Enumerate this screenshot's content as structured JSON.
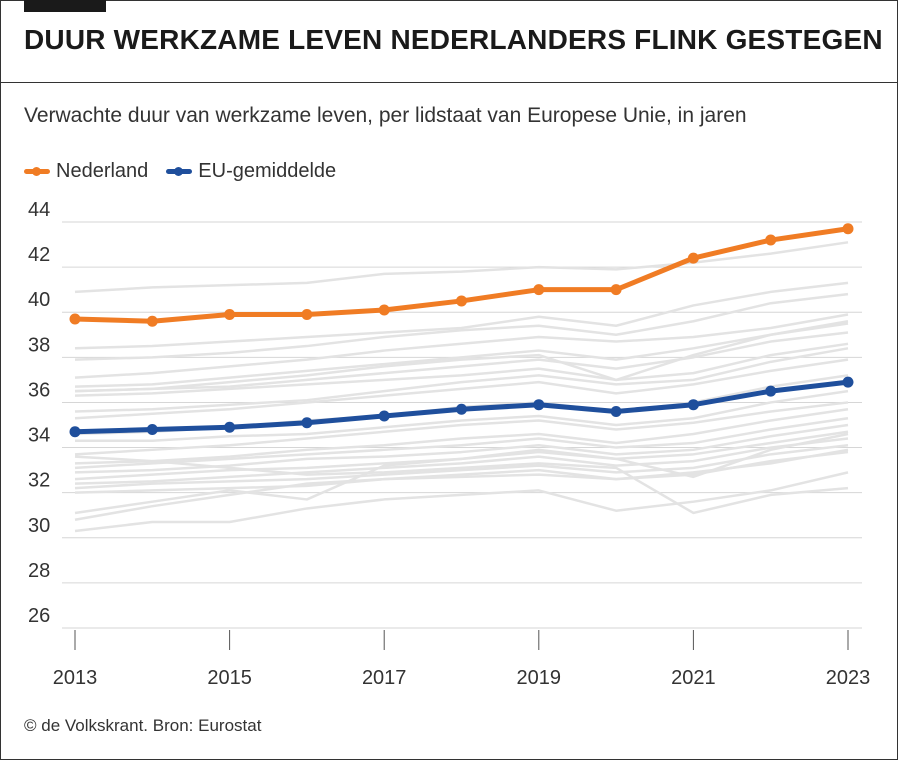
{
  "header": {
    "headline": "DUUR WERKZAME LEVEN NEDERLANDERS FLINK GESTEGEN",
    "subtitle": "Verwachte duur van werkzame leven, per lidstaat van Europese Unie, in jaren"
  },
  "footer": {
    "source": "© de Volkskrant. Bron: Eurostat"
  },
  "colors": {
    "nederland": "#f07c24",
    "eu": "#1f4f9c",
    "background_lines": "#e3e3e3",
    "grid": "#d6d6d6"
  },
  "chart_data": {
    "type": "line",
    "title": "DUUR WERKZAME LEVEN NEDERLANDERS FLINK GESTEGEN",
    "subtitle": "Verwachte duur van werkzame leven, per lidstaat van Europese Unie, in jaren",
    "x": [
      2013,
      2014,
      2015,
      2016,
      2017,
      2018,
      2019,
      2020,
      2021,
      2022,
      2023
    ],
    "x_ticks": [
      2013,
      2015,
      2017,
      2019,
      2021,
      2023
    ],
    "y_ticks": [
      26,
      28,
      30,
      32,
      34,
      36,
      38,
      40,
      42,
      44
    ],
    "ylim": [
      25,
      45
    ],
    "grid": true,
    "legend_position": "top-left",
    "series": [
      {
        "name": "Nederland",
        "color": "#f07c24",
        "values": [
          39.7,
          39.6,
          39.9,
          39.9,
          40.1,
          40.5,
          41.0,
          41.0,
          42.4,
          43.2,
          43.7
        ]
      },
      {
        "name": "EU-gemiddelde",
        "color": "#1f4f9c",
        "values": [
          34.7,
          34.8,
          34.9,
          35.1,
          35.4,
          35.7,
          35.9,
          35.6,
          35.9,
          36.5,
          36.9
        ]
      }
    ],
    "other_series": [
      [
        40.9,
        41.1,
        41.2,
        41.3,
        41.7,
        41.8,
        42.0,
        41.9,
        42.2,
        42.6,
        43.1
      ],
      [
        38.4,
        38.5,
        38.7,
        38.9,
        39.1,
        39.3,
        39.8,
        39.4,
        40.3,
        40.9,
        41.3
      ],
      [
        37.9,
        38.0,
        38.2,
        38.5,
        38.9,
        39.2,
        39.4,
        39.0,
        39.6,
        40.4,
        40.8
      ],
      [
        37.1,
        37.3,
        37.6,
        37.9,
        38.3,
        38.6,
        38.9,
        38.7,
        38.9,
        39.3,
        39.9
      ],
      [
        36.7,
        36.8,
        37.1,
        37.4,
        37.7,
        38.0,
        38.3,
        37.9,
        38.4,
        39.0,
        39.6
      ],
      [
        36.5,
        36.6,
        36.7,
        37.0,
        37.3,
        37.6,
        37.9,
        37.5,
        38.0,
        38.7,
        39.1
      ],
      [
        36.3,
        36.4,
        36.6,
        36.8,
        37.0,
        37.2,
        37.5,
        37.0,
        37.3,
        38.1,
        38.6
      ],
      [
        35.6,
        35.7,
        35.9,
        36.1,
        36.5,
        36.9,
        37.2,
        36.8,
        37.0,
        37.8,
        38.4
      ],
      [
        35.3,
        35.5,
        35.7,
        36.0,
        36.3,
        36.6,
        36.9,
        36.4,
        36.8,
        37.4,
        37.9
      ],
      [
        34.6,
        34.7,
        34.9,
        35.2,
        35.4,
        35.8,
        36.0,
        35.6,
        36.0,
        36.7,
        37.2
      ],
      [
        34.3,
        34.3,
        34.5,
        34.6,
        34.9,
        35.2,
        35.4,
        35.0,
        35.3,
        36.0,
        36.5
      ],
      [
        33.7,
        33.9,
        34.1,
        34.4,
        34.7,
        35.0,
        35.2,
        34.8,
        35.1,
        35.6,
        36.0
      ],
      [
        33.3,
        33.4,
        33.6,
        33.9,
        34.1,
        34.4,
        34.6,
        34.2,
        34.6,
        35.2,
        35.7
      ],
      [
        33.1,
        33.3,
        33.5,
        33.7,
        33.9,
        34.1,
        34.4,
        34.0,
        34.2,
        34.8,
        35.3
      ],
      [
        32.9,
        33.0,
        33.2,
        33.5,
        33.6,
        33.8,
        34.1,
        33.7,
        33.9,
        34.5,
        35.0
      ],
      [
        32.6,
        32.8,
        33.0,
        33.1,
        33.3,
        33.5,
        33.8,
        33.5,
        33.7,
        34.2,
        34.7
      ],
      [
        32.4,
        32.5,
        32.7,
        32.9,
        33.1,
        33.3,
        33.6,
        33.2,
        33.4,
        34.0,
        34.4
      ],
      [
        32.2,
        32.4,
        32.5,
        32.6,
        32.8,
        33.0,
        33.2,
        32.9,
        33.1,
        33.7,
        34.1
      ],
      [
        32.0,
        32.1,
        32.2,
        32.3,
        32.6,
        32.8,
        33.0,
        32.6,
        32.8,
        33.4,
        33.8
      ],
      [
        31.1,
        31.6,
        32.1,
        31.7,
        33.2,
        33.5,
        33.9,
        33.5,
        32.7,
        33.9,
        34.6
      ],
      [
        30.8,
        31.4,
        31.9,
        32.4,
        32.6,
        32.7,
        32.8,
        32.6,
        32.9,
        33.3,
        33.9
      ],
      [
        30.3,
        30.7,
        30.7,
        31.3,
        31.7,
        31.9,
        32.1,
        31.2,
        31.6,
        32.1,
        32.9
      ],
      [
        33.6,
        33.4,
        33.1,
        32.8,
        32.9,
        33.1,
        33.3,
        33.1,
        31.1,
        31.9,
        32.2
      ],
      [
        36.5,
        36.6,
        36.9,
        37.2,
        37.6,
        37.9,
        38.1,
        37.0,
        38.1,
        39.0,
        39.5
      ]
    ]
  }
}
